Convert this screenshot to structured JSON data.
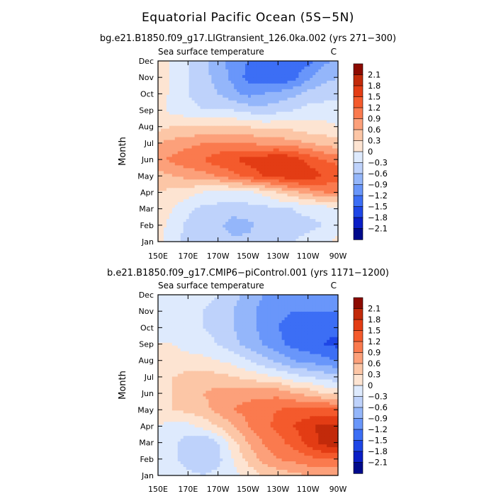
{
  "figure": {
    "title": "Equatorial Pacific Ocean (5S−5N)"
  },
  "chart_data": [
    {
      "type": "heatmap",
      "title": "bg.e21.B1850.f09_g17.LIGtransient_126.0ka.002 (yrs 271−300)",
      "left_label": "Sea surface temperature",
      "units": "C",
      "xlabel": "",
      "ylabel": "Month",
      "x_ticks": [
        "150E",
        "170E",
        "170W",
        "150W",
        "130W",
        "110W",
        "90W"
      ],
      "y_ticks": [
        "Jan",
        "Feb",
        "Mar",
        "Apr",
        "May",
        "Jun",
        "Jul",
        "Aug",
        "Sep",
        "Oct",
        "Nov",
        "Dec"
      ],
      "grid": [
        [
          0.1,
          -0.2,
          -0.4,
          -0.5,
          -0.4,
          -0.5,
          -0.5,
          -0.3,
          -0.3,
          -0.3,
          -0.2,
          -0.1,
          0.1
        ],
        [
          0.1,
          -0.1,
          -0.4,
          -0.6,
          -0.5,
          -0.8,
          -0.7,
          -0.5,
          -0.4,
          -0.4,
          -0.4,
          -0.3,
          -0.2
        ],
        [
          0.2,
          0.0,
          -0.2,
          -0.4,
          -0.4,
          -0.4,
          -0.4,
          -0.4,
          -0.3,
          -0.3,
          -0.2,
          -0.2,
          0.0
        ],
        [
          0.3,
          0.2,
          0.1,
          0.0,
          -0.1,
          -0.1,
          -0.1,
          0.1,
          0.3,
          0.5,
          0.7,
          0.9,
          0.9
        ],
        [
          0.5,
          0.6,
          0.7,
          0.8,
          0.9,
          1.1,
          1.3,
          1.5,
          1.6,
          1.8,
          1.7,
          1.5,
          1.4
        ],
        [
          0.8,
          1.0,
          1.1,
          1.2,
          1.4,
          1.5,
          1.6,
          1.7,
          1.8,
          1.7,
          1.4,
          1.2,
          1.1
        ],
        [
          0.6,
          0.7,
          0.8,
          0.9,
          0.9,
          0.9,
          0.9,
          0.8,
          0.8,
          0.7,
          0.6,
          0.5,
          0.4
        ],
        [
          0.2,
          0.3,
          0.3,
          0.3,
          0.3,
          0.3,
          0.3,
          0.2,
          0.2,
          0.2,
          0.1,
          0.1,
          0.0
        ],
        [
          0.1,
          -0.1,
          -0.2,
          -0.3,
          -0.3,
          -0.3,
          -0.4,
          -0.5,
          -0.4,
          -0.3,
          -0.2,
          -0.2,
          -0.1
        ],
        [
          0.2,
          -0.1,
          -0.3,
          -0.4,
          -0.6,
          -0.8,
          -1.0,
          -0.9,
          -0.8,
          -0.7,
          -0.5,
          -0.4,
          -0.4
        ],
        [
          0.2,
          -0.1,
          -0.3,
          -0.5,
          -0.7,
          -1.0,
          -1.3,
          -1.4,
          -1.5,
          -1.3,
          -1.0,
          -0.7,
          -0.6
        ],
        [
          0.2,
          -0.1,
          -0.3,
          -0.5,
          -0.8,
          -1.0,
          -1.2,
          -1.3,
          -1.3,
          -1.3,
          -1.3,
          -1.0,
          -0.8
        ]
      ],
      "colorbar": {
        "labels": [
          "2.1",
          "1.8",
          "1.5",
          "1.2",
          "0.9",
          "0.6",
          "0.3",
          "0",
          "−0.3",
          "−0.6",
          "−0.9",
          "−1.2",
          "−1.5",
          "−1.8",
          "−2.1"
        ]
      }
    },
    {
      "type": "heatmap",
      "title": "b.e21.B1850.f09_g17.CMIP6−piControl.001 (yrs 1171−1200)",
      "left_label": "Sea surface temperature",
      "units": "C",
      "xlabel": "",
      "ylabel": "Month",
      "x_ticks": [
        "150E",
        "170E",
        "170W",
        "150W",
        "130W",
        "110W",
        "90W"
      ],
      "y_ticks": [
        "Jan",
        "Feb",
        "Mar",
        "Apr",
        "May",
        "Jun",
        "Jul",
        "Aug",
        "Sep",
        "Oct",
        "Nov",
        "Dec"
      ],
      "grid": [
        [
          0.0,
          -0.1,
          -0.2,
          -0.3,
          -0.2,
          -0.1,
          0.1,
          0.3,
          0.4,
          0.5,
          0.6,
          0.6,
          0.6
        ],
        [
          0.0,
          -0.2,
          -0.5,
          -0.6,
          -0.4,
          0.0,
          0.4,
          0.7,
          0.9,
          1.0,
          1.1,
          1.2,
          1.2
        ],
        [
          0.0,
          -0.2,
          -0.5,
          -0.6,
          -0.3,
          0.2,
          0.6,
          0.9,
          1.1,
          1.3,
          1.6,
          1.9,
          2.1
        ],
        [
          0.0,
          -0.1,
          -0.1,
          0.1,
          0.3,
          0.6,
          0.9,
          1.1,
          1.3,
          1.5,
          1.7,
          1.9,
          1.9
        ],
        [
          0.1,
          0.3,
          0.4,
          0.5,
          0.7,
          0.9,
          1.0,
          1.1,
          1.2,
          1.3,
          1.3,
          1.3,
          1.3
        ],
        [
          0.2,
          0.3,
          0.5,
          0.6,
          0.7,
          0.8,
          0.8,
          0.8,
          0.8,
          0.6,
          0.5,
          0.3,
          0.2
        ],
        [
          0.1,
          0.3,
          0.4,
          0.4,
          0.4,
          0.3,
          0.2,
          0.1,
          0.0,
          -0.2,
          -0.3,
          -0.4,
          -0.5
        ],
        [
          0.0,
          0.1,
          0.1,
          0.1,
          0.0,
          -0.1,
          -0.3,
          -0.5,
          -0.7,
          -0.9,
          -1.0,
          -1.1,
          -1.2
        ],
        [
          0.0,
          0.0,
          -0.1,
          -0.2,
          -0.3,
          -0.5,
          -0.7,
          -0.9,
          -1.1,
          -1.3,
          -1.4,
          -1.5,
          -1.6
        ],
        [
          0.0,
          -0.1,
          -0.2,
          -0.3,
          -0.4,
          -0.6,
          -0.8,
          -1.0,
          -1.2,
          -1.4,
          -1.4,
          -1.4,
          -1.4
        ],
        [
          0.0,
          -0.1,
          -0.2,
          -0.3,
          -0.4,
          -0.6,
          -0.8,
          -1.0,
          -1.1,
          -1.2,
          -1.2,
          -1.2,
          -1.2
        ],
        [
          0.0,
          -0.1,
          -0.2,
          -0.2,
          -0.3,
          -0.5,
          -0.7,
          -0.9,
          -0.9,
          -1.0,
          -1.0,
          -1.0,
          -1.0
        ]
      ],
      "colorbar": {
        "labels": [
          "2.1",
          "1.8",
          "1.5",
          "1.2",
          "0.9",
          "0.6",
          "0.3",
          "0",
          "−0.3",
          "−0.6",
          "−0.9",
          "−1.2",
          "−1.5",
          "−1.8",
          "−2.1"
        ]
      }
    }
  ],
  "colors": {
    "levels": [
      "#000a8b",
      "#0a1ec6",
      "#1e46e6",
      "#3c6ef5",
      "#6996fa",
      "#94b6fa",
      "#bed2fb",
      "#deeafd",
      "#fde4d2",
      "#fcc6a6",
      "#fca07a",
      "#fa7a4e",
      "#f45a2c",
      "#e33c14",
      "#c22a0a",
      "#8c0a00"
    ]
  }
}
